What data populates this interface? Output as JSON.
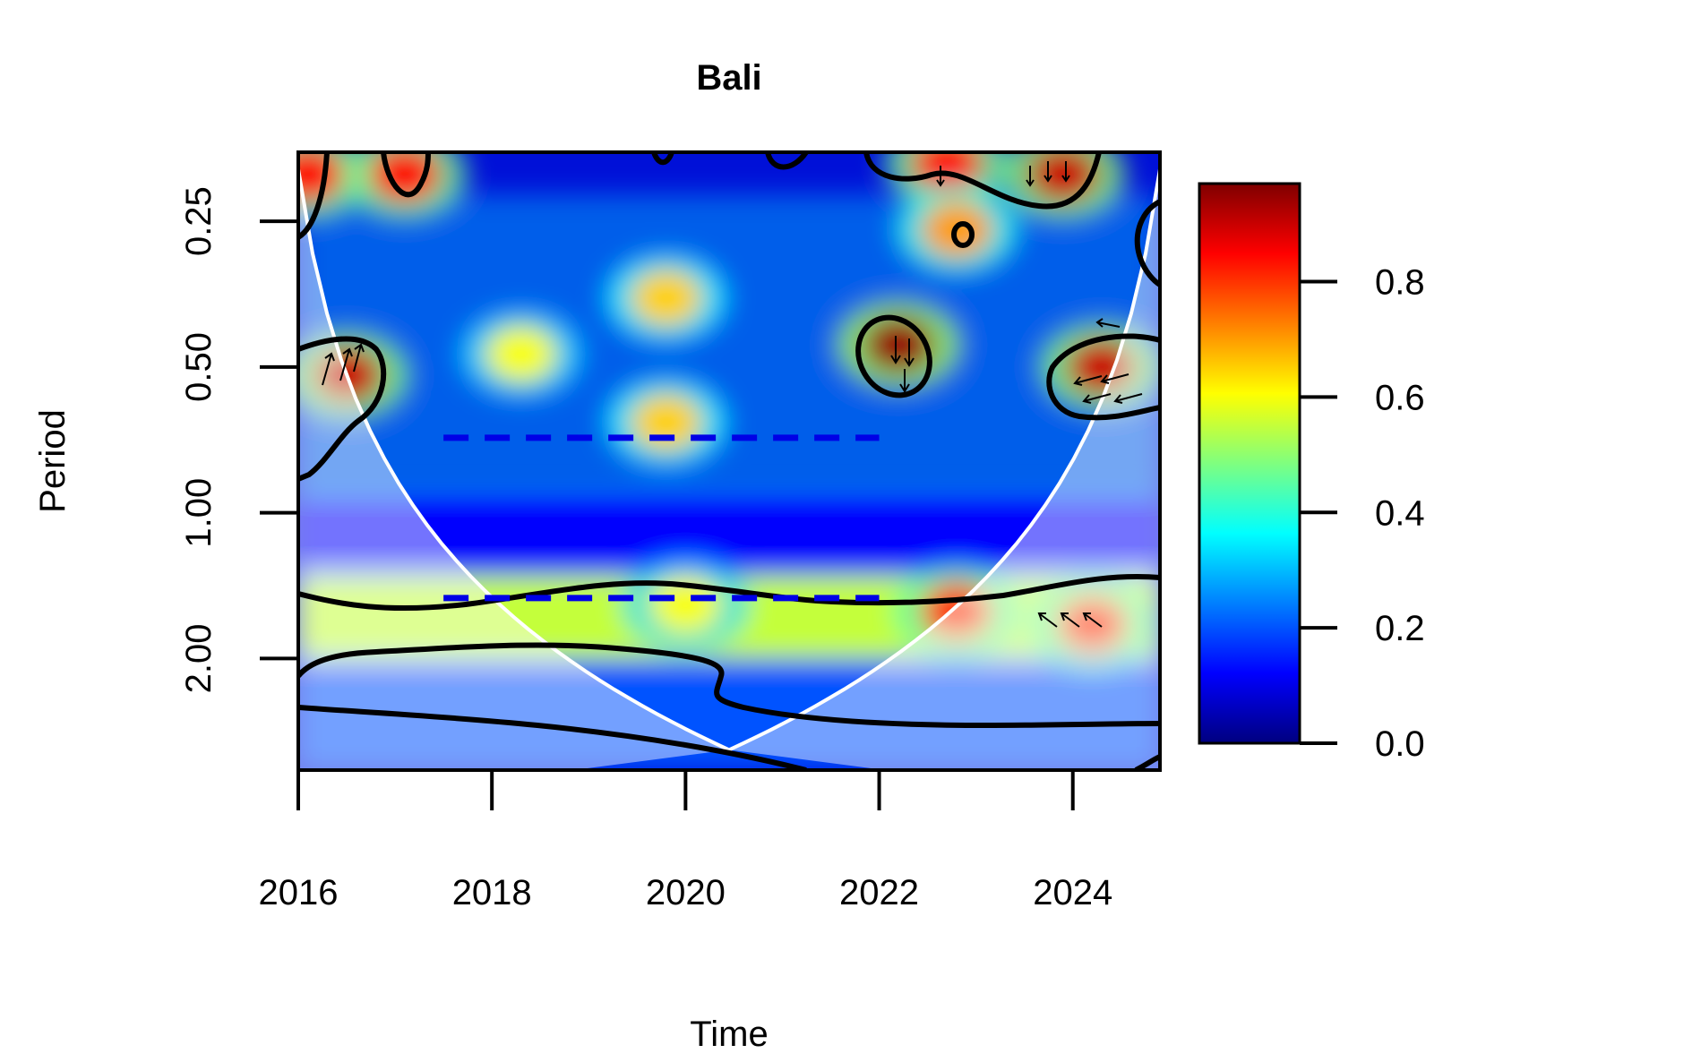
{
  "chart_data": {
    "type": "heatmap",
    "title": "Bali",
    "xlabel": "Time",
    "ylabel": "Period",
    "x_ticks": [
      "2016",
      "2018",
      "2020",
      "2022",
      "2024"
    ],
    "x_tick_values": [
      2016,
      2018,
      2020,
      2022,
      2024
    ],
    "xlim": [
      2016,
      2024.9
    ],
    "y_ticks": [
      "0.25",
      "0.50",
      "1.00",
      "2.00"
    ],
    "y_tick_values": [
      0.25,
      0.5,
      1.0,
      2.0
    ],
    "y_scale": "log2",
    "ylim": [
      0.18,
      3.4
    ],
    "colorbar": {
      "ticks": [
        "0.0",
        "0.2",
        "0.4",
        "0.6",
        "0.8"
      ],
      "tick_values": [
        0.0,
        0.2,
        0.4,
        0.6,
        0.8
      ],
      "range": [
        0.0,
        0.97
      ],
      "palette": [
        "#00007f",
        "#0000ff",
        "#007fff",
        "#00ffff",
        "#7fff7f",
        "#ffff00",
        "#ff7f00",
        "#ff0000",
        "#7f0000"
      ]
    },
    "coherence_blobs": [
      {
        "x": 2016.1,
        "period": 0.2,
        "value": 0.85
      },
      {
        "x": 2017.1,
        "period": 0.2,
        "value": 0.85
      },
      {
        "x": 2018.3,
        "period": 0.47,
        "value": 0.6
      },
      {
        "x": 2019.8,
        "period": 0.36,
        "value": 0.65
      },
      {
        "x": 2022.2,
        "period": 0.45,
        "value": 0.95
      },
      {
        "x": 2023.9,
        "period": 0.2,
        "value": 0.9
      },
      {
        "x": 2022.7,
        "period": 0.19,
        "value": 0.85
      },
      {
        "x": 2016.5,
        "period": 0.52,
        "value": 0.9
      },
      {
        "x": 2024.3,
        "period": 0.5,
        "value": 0.9
      },
      {
        "x": 2022.8,
        "period": 0.26,
        "value": 0.7
      },
      {
        "x": 2019.8,
        "period": 0.65,
        "value": 0.65
      },
      {
        "x": 2022.8,
        "period": 1.6,
        "value": 0.8
      },
      {
        "x": 2024.2,
        "period": 1.7,
        "value": 0.8
      },
      {
        "x": 2020.0,
        "period": 1.55,
        "value": 0.6
      }
    ],
    "ridge_lines": [
      {
        "period": 0.7,
        "x_start": 2017.5,
        "x_end": 2022.0
      },
      {
        "period": 1.5,
        "x_start": 2017.5,
        "x_end": 2022.0
      }
    ]
  }
}
